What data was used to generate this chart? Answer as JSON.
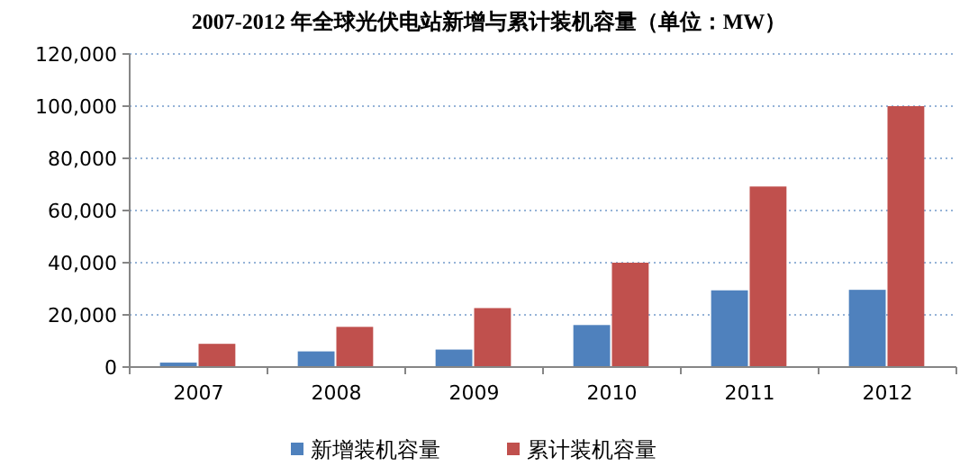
{
  "chart_data": {
    "type": "bar",
    "title": "2007-2012 年全球光伏电站新增与累计装机容量（单位：MW）",
    "categories": [
      "2007",
      "2008",
      "2009",
      "2010",
      "2011",
      "2012"
    ],
    "series": [
      {
        "name": "新增装机容量",
        "color": "#4f81bd",
        "values": [
          1700,
          6000,
          6700,
          16100,
          29400,
          29600
        ]
      },
      {
        "name": "累计装机容量",
        "color": "#c0504d",
        "values": [
          8900,
          15400,
          22600,
          40000,
          69200,
          100000
        ]
      }
    ],
    "ylim": [
      0,
      120000
    ],
    "yticks": [
      {
        "value": 0,
        "label": "0"
      },
      {
        "value": 20000,
        "label": "20,000"
      },
      {
        "value": 40000,
        "label": "40,000"
      },
      {
        "value": 60000,
        "label": "60,000"
      },
      {
        "value": 80000,
        "label": "80,000"
      },
      {
        "value": 100000,
        "label": "100,000"
      },
      {
        "value": 120000,
        "label": "120,000"
      }
    ],
    "grid": "y",
    "legend": "bottom"
  }
}
